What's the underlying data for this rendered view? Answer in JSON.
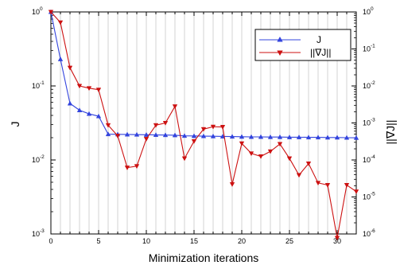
{
  "chart_data": {
    "type": "line",
    "title": "",
    "xlabel": "Minimization iterations",
    "ylabel_left": "J",
    "ylabel_right": "||∇J||",
    "x": [
      0,
      1,
      2,
      3,
      4,
      5,
      6,
      7,
      8,
      9,
      10,
      11,
      12,
      13,
      14,
      15,
      16,
      17,
      18,
      19,
      20,
      21,
      22,
      23,
      24,
      25,
      26,
      27,
      28,
      29,
      30,
      31,
      32
    ],
    "xlim": [
      0,
      32
    ],
    "x_ticks": [
      0,
      5,
      10,
      15,
      20,
      25,
      30
    ],
    "x_tick_labels": [
      "0",
      "5",
      "10",
      "15",
      "20",
      "25",
      "30"
    ],
    "y_left": {
      "scale": "log",
      "lim": [
        0.001,
        1
      ],
      "ticks": [
        1,
        0.1,
        0.01,
        0.001
      ],
      "tick_labels": [
        [
          "10",
          "0"
        ],
        [
          "10",
          "-1"
        ],
        [
          "10",
          "-2"
        ],
        [
          "10",
          "-3"
        ]
      ]
    },
    "y_right": {
      "scale": "log",
      "lim": [
        1e-06,
        1
      ],
      "ticks": [
        1,
        0.1,
        0.01,
        0.001,
        0.0001,
        1e-05,
        1e-06
      ],
      "tick_labels": [
        [
          "10",
          "0"
        ],
        [
          "10",
          "-1"
        ],
        [
          "10",
          "-2"
        ],
        [
          "10",
          "-3"
        ],
        [
          "10",
          "-4"
        ],
        [
          "10",
          "-5"
        ],
        [
          "10",
          "-6"
        ]
      ]
    },
    "grid": "vertical-at-each-x",
    "legend_position": "top-right",
    "series": [
      {
        "name": "J",
        "axis": "left",
        "color": "#3344dd",
        "marker": "triangle-up",
        "values": [
          1.0,
          0.23,
          0.058,
          0.047,
          0.042,
          0.039,
          0.0223,
          0.0222,
          0.0221,
          0.022,
          0.0219,
          0.0218,
          0.0217,
          0.0216,
          0.0212,
          0.0211,
          0.021,
          0.0209,
          0.0208,
          0.0207,
          0.0206,
          0.0205,
          0.0205,
          0.0204,
          0.0204,
          0.0203,
          0.0203,
          0.0202,
          0.0202,
          0.0201,
          0.0201,
          0.02,
          0.0199
        ]
      },
      {
        "name": "||∇J||",
        "axis": "right",
        "color": "#cc1111",
        "marker": "triangle-down",
        "values": [
          1.0,
          0.52,
          0.031,
          0.01,
          0.0087,
          0.0079,
          0.00087,
          0.00045,
          6.2e-05,
          6.8e-05,
          0.00037,
          0.00087,
          0.001,
          0.0028,
          0.00011,
          0.00032,
          0.00068,
          0.00079,
          0.00078,
          2.2e-05,
          0.00028,
          0.00015,
          0.000125,
          0.00017,
          0.00027,
          0.00011,
          3.9e-05,
          8e-05,
          2.4e-05,
          2.1e-05,
          7.8e-07,
          2.1e-05,
          1.4e-05
        ]
      }
    ]
  }
}
